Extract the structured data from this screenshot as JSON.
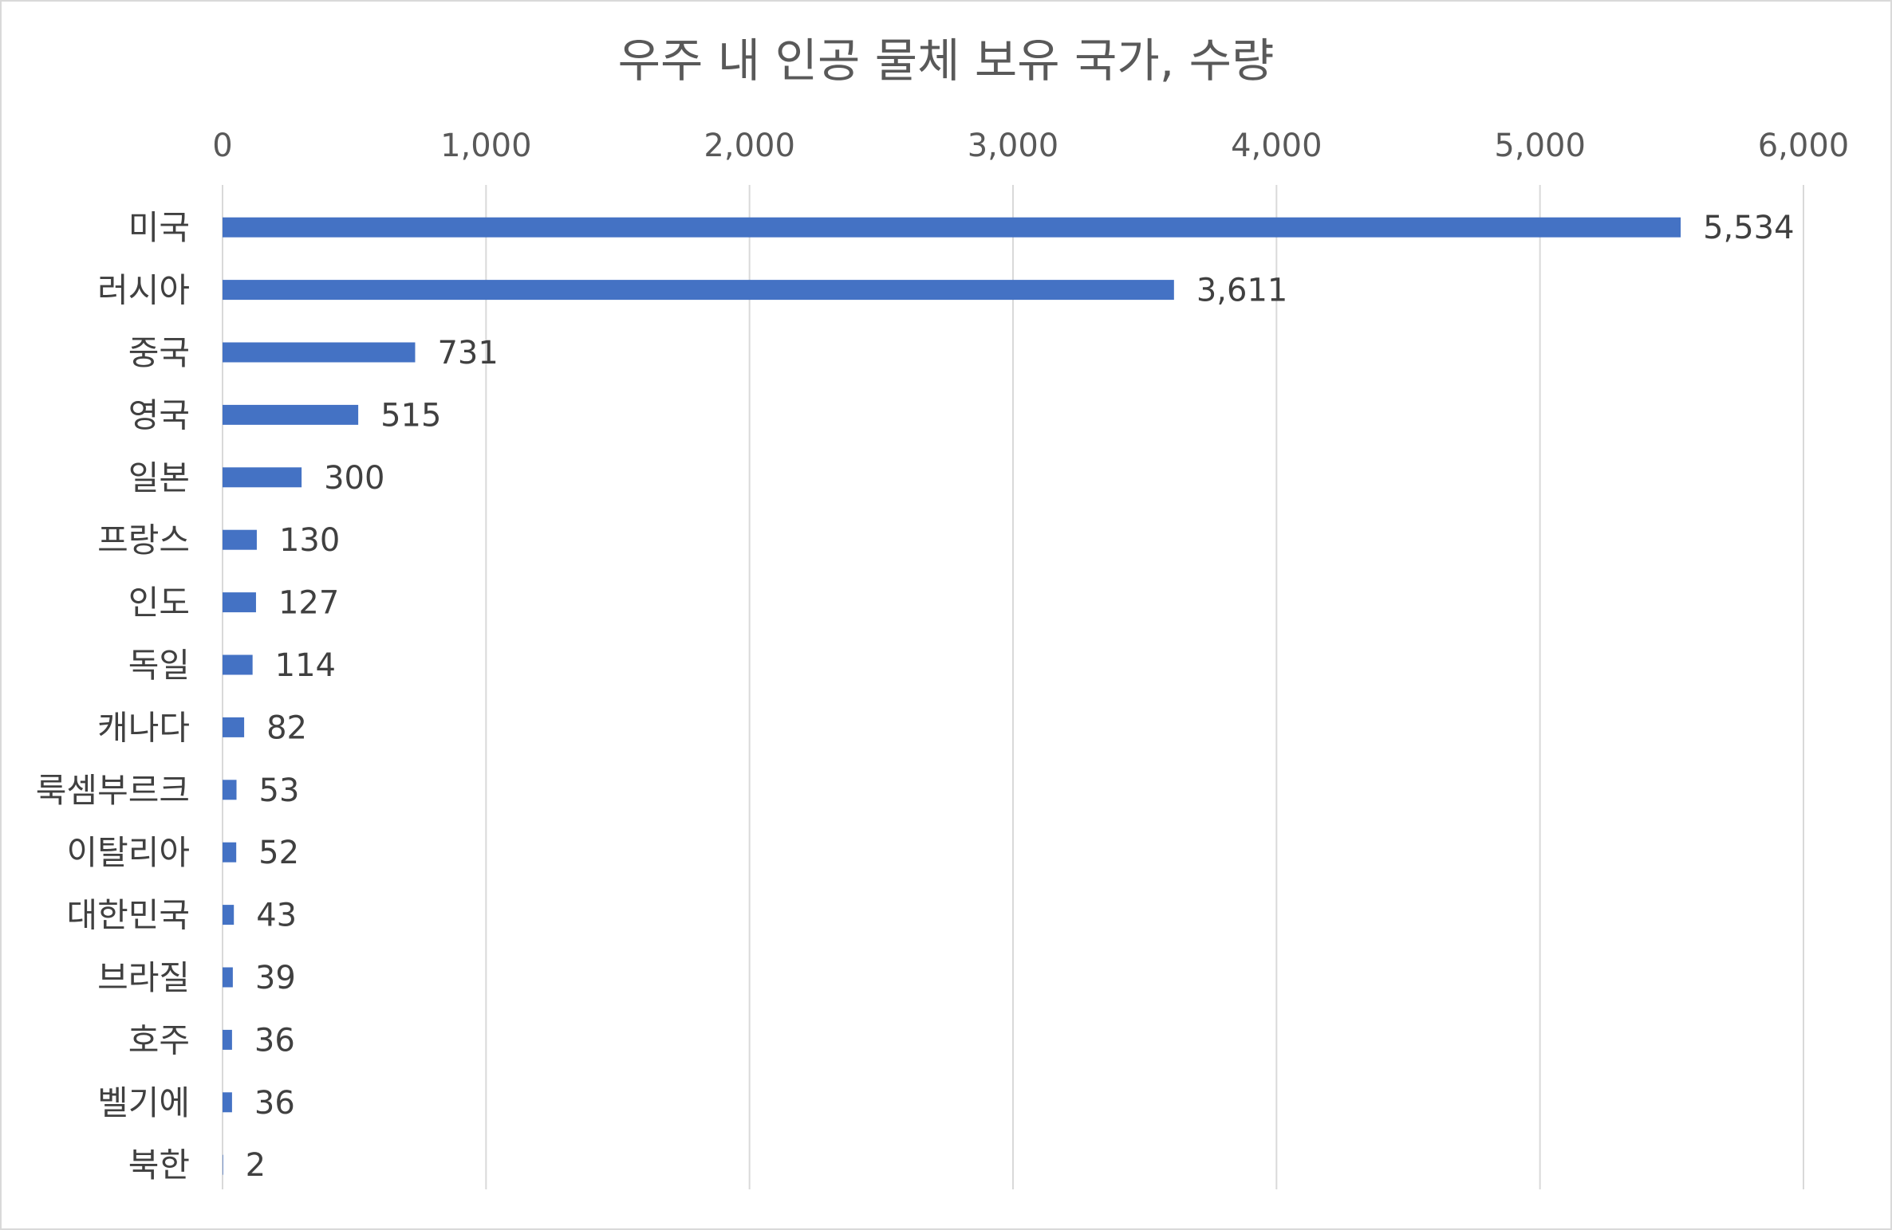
{
  "chart_data": {
    "type": "bar",
    "orientation": "horizontal",
    "title": "우주 내 인공 물체 보유 국가, 수량",
    "categories": [
      "미국",
      "러시아",
      "중국",
      "영국",
      "일본",
      "프랑스",
      "인도",
      "독일",
      "캐나다",
      "룩셈부르크",
      "이탈리아",
      "대한민국",
      "브라질",
      "호주",
      "벨기에",
      "북한"
    ],
    "values": [
      5534,
      3611,
      731,
      515,
      300,
      130,
      127,
      114,
      82,
      53,
      52,
      43,
      39,
      36,
      36,
      2
    ],
    "value_labels": [
      "5,534",
      "3,611",
      "731",
      "515",
      "300",
      "130",
      "127",
      "114",
      "82",
      "53",
      "52",
      "43",
      "39",
      "36",
      "36",
      "2"
    ],
    "xlim": [
      0,
      6000
    ],
    "xticks": [
      0,
      1000,
      2000,
      3000,
      4000,
      5000,
      6000
    ],
    "xtick_labels": [
      "0",
      "1,000",
      "2,000",
      "3,000",
      "4,000",
      "5,000",
      "6,000"
    ],
    "axis_position": "top",
    "grid": true,
    "legend": "none",
    "bar_color": "#4472c4",
    "grid_color": "#d9d9d9"
  }
}
